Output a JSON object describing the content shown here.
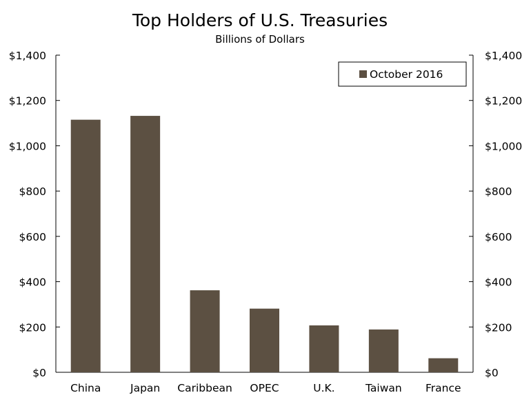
{
  "chart_data": {
    "type": "bar",
    "title": "Top Holders of U.S. Treasuries",
    "subtitle": "Billions of Dollars",
    "categories": [
      "China",
      "Japan",
      "Caribbean",
      "OPEC",
      "U.K.",
      "Taiwan",
      "France"
    ],
    "series": [
      {
        "name": "October 2016",
        "values": [
          1115,
          1132,
          362,
          281,
          207,
          189,
          62
        ],
        "color": "#5c5042"
      }
    ],
    "ylim": [
      0,
      1400
    ],
    "yticks": [
      0,
      200,
      400,
      600,
      800,
      1000,
      1200,
      1400
    ],
    "ytick_labels": [
      "$0",
      "$200",
      "$400",
      "$600",
      "$800",
      "$1,000",
      "$1,200",
      "$1,400"
    ],
    "secondary_y_axis": true,
    "grid": false,
    "legend_position": "top-right"
  }
}
